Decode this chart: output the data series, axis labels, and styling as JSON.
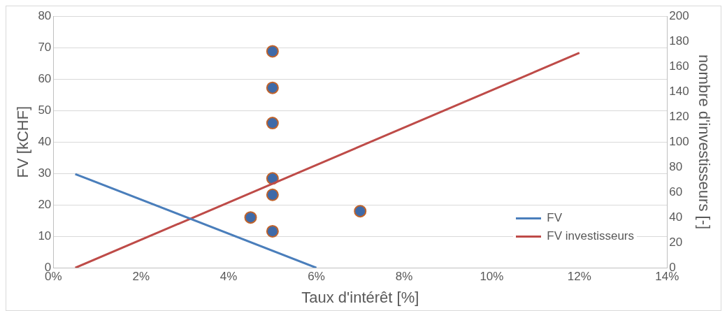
{
  "chart_data": {
    "type": "line",
    "xlabel": "Taux d'intérêt [%]",
    "ylabel": "FV [kCHF]",
    "y2label": "nombre d'investisseurs [-]",
    "xlim": [
      0,
      14
    ],
    "xticks": [
      {
        "value": 0,
        "label": "0%"
      },
      {
        "value": 2,
        "label": "2%"
      },
      {
        "value": 4,
        "label": "4%"
      },
      {
        "value": 6,
        "label": "6%"
      },
      {
        "value": 8,
        "label": "8%"
      },
      {
        "value": 10,
        "label": "10%"
      },
      {
        "value": 12,
        "label": "12%"
      },
      {
        "value": 14,
        "label": "14%"
      }
    ],
    "ylim": [
      0,
      80
    ],
    "yticks": [
      0,
      10,
      20,
      30,
      40,
      50,
      60,
      70,
      80
    ],
    "y2lim": [
      0,
      200
    ],
    "y2ticks": [
      0,
      20,
      40,
      60,
      80,
      100,
      120,
      140,
      160,
      180,
      200
    ],
    "grid": "y",
    "legend": "bottom right",
    "series": [
      {
        "name": "FV",
        "color": "#4a7ebb",
        "x": [
          0.5,
          6.0
        ],
        "values": [
          29.8,
          0
        ]
      },
      {
        "name": "FV investisseurs",
        "color": "#be4b48",
        "x": [
          0.5,
          12
        ],
        "values": [
          0,
          68.3
        ]
      },
      {
        "type": "scatter",
        "axis": "y2",
        "color": "#c0632b",
        "marker": "circle",
        "x": [
          5,
          5,
          5,
          5,
          5,
          4.5,
          5,
          7
        ],
        "values": [
          172,
          143,
          115,
          71,
          58,
          40,
          29,
          45
        ]
      }
    ]
  }
}
